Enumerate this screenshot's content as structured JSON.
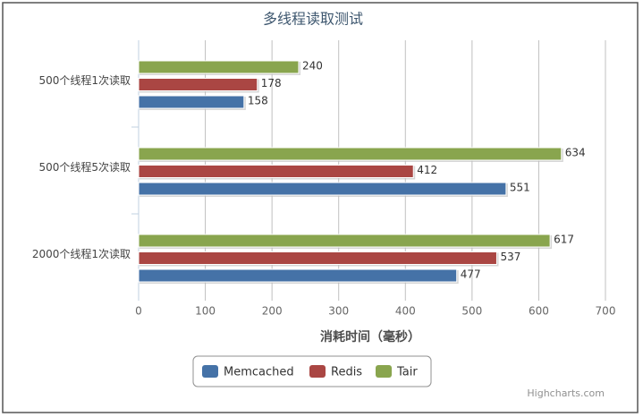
{
  "chart_data": {
    "type": "bar",
    "title": "多线程读取测试",
    "categories": [
      "500个线程1次读取",
      "500个线程5次读取",
      "2000个线程1次读取"
    ],
    "series": [
      {
        "name": "Memcached",
        "color": "#4572a7",
        "values": [
          158,
          551,
          477
        ]
      },
      {
        "name": "Redis",
        "color": "#aa4643",
        "values": [
          178,
          412,
          537
        ]
      },
      {
        "name": "Tair",
        "color": "#89a54e",
        "values": [
          240,
          634,
          617
        ]
      }
    ],
    "x_label": "消耗时间（毫秒）",
    "xlim": [
      0,
      700
    ],
    "xticks": [
      0,
      100,
      200,
      300,
      400,
      500,
      600,
      700
    ],
    "grid": true,
    "legend": "bottom",
    "credits": "Highcharts.com"
  }
}
